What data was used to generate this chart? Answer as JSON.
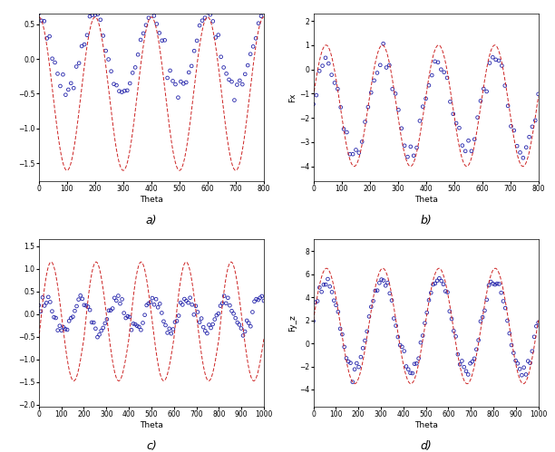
{
  "subplots": [
    {
      "label": "a)",
      "xlabel": "Theta",
      "ylabel": "",
      "xlim": [
        0,
        800
      ],
      "ylim": [
        -1.75,
        0.65
      ],
      "yticks": [
        -1.5,
        -1.0,
        -0.5,
        0.0,
        0.5
      ],
      "xticks": [
        0,
        100,
        200,
        300,
        400,
        500,
        600,
        700,
        800
      ]
    },
    {
      "label": "b)",
      "xlabel": "Theta",
      "ylabel": "Fx",
      "xlim": [
        0,
        800
      ],
      "ylim": [
        -4.6,
        2.3
      ],
      "yticks": [
        -4,
        -3,
        -2,
        -1,
        0,
        1,
        2
      ],
      "xticks": [
        0,
        100,
        200,
        300,
        400,
        500,
        600,
        700,
        800
      ]
    },
    {
      "label": "c)",
      "xlabel": "Theta",
      "ylabel": "",
      "xlim": [
        0,
        1000
      ],
      "ylim": [
        -2.05,
        1.65
      ],
      "yticks": [
        -2.0,
        -1.5,
        -1.0,
        -0.5,
        0.0,
        0.5,
        1.0,
        1.5
      ],
      "xticks": [
        0,
        100,
        200,
        300,
        400,
        500,
        600,
        700,
        800,
        900,
        1000
      ]
    },
    {
      "label": "d)",
      "xlabel": "Theta",
      "ylabel": "Fy_z",
      "xlim": [
        0,
        1000
      ],
      "ylim": [
        -5.5,
        9.0
      ],
      "yticks": [
        -4,
        -2,
        0,
        2,
        4,
        6,
        8
      ],
      "xticks": [
        0,
        100,
        200,
        300,
        400,
        500,
        600,
        700,
        800,
        900,
        1000
      ]
    }
  ],
  "line_color": "#CC2222",
  "marker_color": "#2222AA",
  "bg_color": "#FFFFFF",
  "fig_width": 6.12,
  "fig_height": 4.99
}
